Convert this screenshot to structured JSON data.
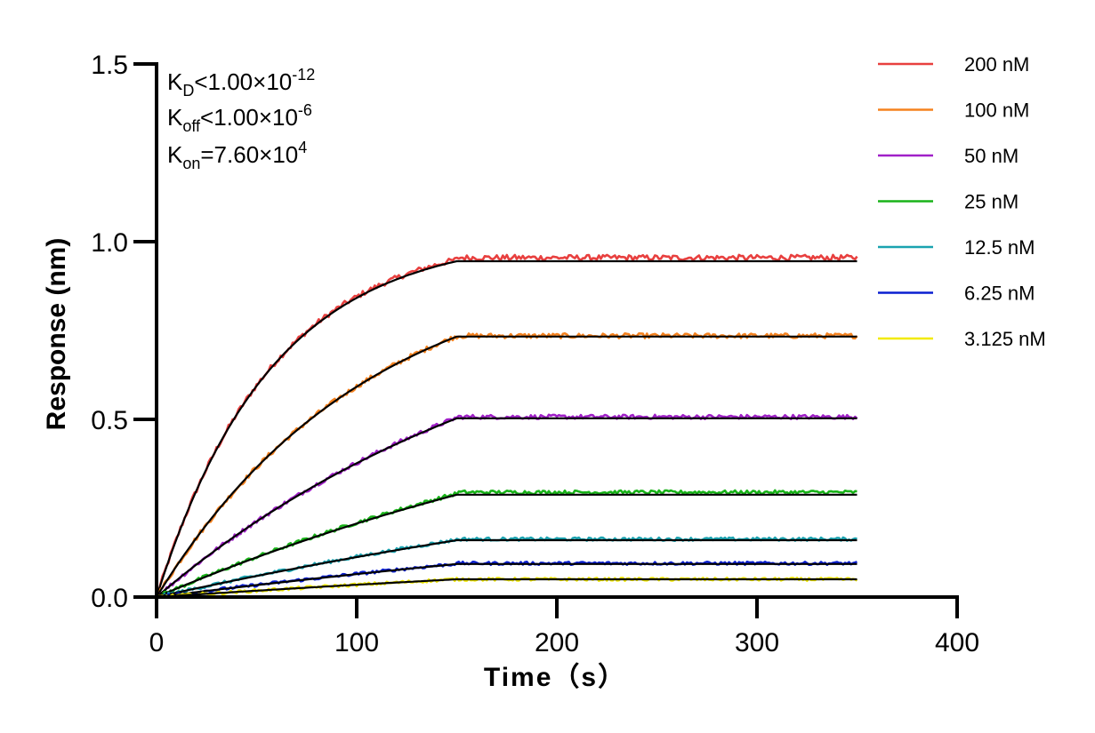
{
  "chart_data": {
    "type": "line",
    "title": "",
    "xlabel": "Time（s）",
    "ylabel": "Response (nm)",
    "xlim": [
      0,
      400
    ],
    "ylim": [
      0,
      1.5
    ],
    "x_ticks": [
      "0",
      "100",
      "200",
      "300",
      "400"
    ],
    "y_ticks": [
      "0.0",
      "0.5",
      "1.0",
      "1.5"
    ],
    "grid": false,
    "legend_position": "top-right",
    "annotations": {
      "kd": {
        "base": "K",
        "sub": "D",
        "rel": "<1.00×10",
        "sup": "-12"
      },
      "koff": {
        "base": "K",
        "sub": "off",
        "rel": "<1.00×10",
        "sup": "-6"
      },
      "kon": {
        "base": "K",
        "sub": "on",
        "rel": "=7.60×10",
        "sup": "4"
      }
    },
    "association_end_s": 150,
    "dissociation_end_s": 350,
    "fit_color": "#000000",
    "series": [
      {
        "name": "200 nM",
        "color": "#e8403f",
        "plateau": 0.945,
        "measured_end": 0.955,
        "k_obs": 0.0175
      },
      {
        "name": "100 nM",
        "color": "#f5821f",
        "plateau": 0.733,
        "measured_end": 0.735,
        "k_obs": 0.0095
      },
      {
        "name": "50 nM",
        "color": "#a020c8",
        "plateau": 0.503,
        "measured_end": 0.507,
        "k_obs": 0.0052
      },
      {
        "name": "25 nM",
        "color": "#19b319",
        "plateau": 0.288,
        "measured_end": 0.295,
        "k_obs": 0.0032
      },
      {
        "name": "12.5 nM",
        "color": "#1aa3b0",
        "plateau": 0.16,
        "measured_end": 0.163,
        "k_obs": 0.0022
      },
      {
        "name": "6.25 nM",
        "color": "#0a1fd1",
        "plateau": 0.093,
        "measured_end": 0.095,
        "k_obs": 0.0017
      },
      {
        "name": "3.125 nM",
        "color": "#f2ea00",
        "plateau": 0.05,
        "measured_end": 0.05,
        "k_obs": 0.0015
      }
    ]
  }
}
